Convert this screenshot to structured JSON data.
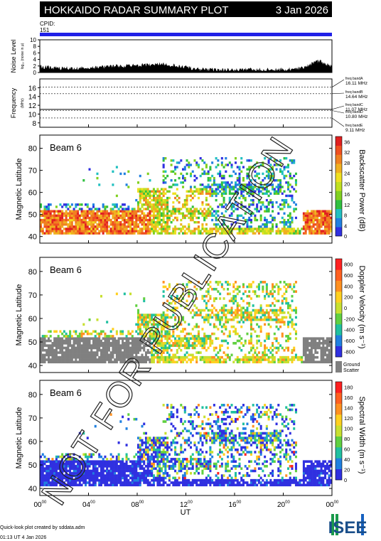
{
  "header": {
    "title": "HOKKAIDO RADAR SUMMARY PLOT",
    "date": "3 Jan 2026",
    "cpid_label": "CPID:",
    "cpid_value": "151"
  },
  "colors": {
    "header_bg": "#000000",
    "cpid_bar": "#2020e8",
    "ground_scatter": "#808080"
  },
  "chart_data": [
    {
      "type": "area",
      "name": "noise",
      "ylabel": "Noise Level",
      "ylabel_sub": "log₁₀ (noise in µ)",
      "ylim": [
        0,
        10
      ],
      "yticks": [
        "10",
        "8",
        "6",
        "4",
        "2",
        "0"
      ],
      "x": [
        0,
        1,
        2,
        3,
        4,
        5,
        6,
        7,
        8,
        9,
        10,
        11,
        12,
        13,
        14,
        15,
        16,
        17,
        18,
        19,
        20,
        21,
        21.5,
        22,
        22.5,
        23,
        23.5,
        24
      ],
      "values": [
        1.8,
        1.5,
        1.3,
        1.4,
        1.6,
        1.7,
        1.9,
        2.0,
        2.2,
        2.4,
        2.6,
        2.2,
        1.6,
        1.0,
        0.9,
        0.8,
        0.9,
        1.0,
        1.0,
        0.9,
        1.0,
        1.1,
        1.4,
        2.0,
        3.0,
        3.5,
        2.5,
        2.0
      ]
    },
    {
      "type": "line",
      "name": "frequency",
      "ylabel": "Frequency",
      "ylabel_sub": "(MHz)",
      "ylim": [
        7,
        18
      ],
      "yticks": [
        "16",
        "14",
        "12",
        "10",
        "8"
      ],
      "bands": [
        {
          "label": "freq bandA",
          "mhz": "16.11 MHz",
          "value": 16.11
        },
        {
          "label": "freq bandB",
          "mhz": "14.64 MHz",
          "value": 14.64
        },
        {
          "label": "freq bandC",
          "mhz": "11.07 MHz",
          "value": 11.07
        },
        {
          "label": "freq bandD",
          "mhz": "10.80 MHz",
          "value": 10.8
        },
        {
          "label": "freq bandE",
          "mhz": "9.11 MHz",
          "value": 9.11
        }
      ]
    },
    {
      "type": "heatmap",
      "name": "power",
      "beam": "Beam  6",
      "ylabel": "Magnetic Latitude",
      "ylim": [
        37,
        86
      ],
      "yticks": [
        "80",
        "70",
        "60",
        "50",
        "40"
      ],
      "colorbar_label": "Backscatter Power (dB)",
      "colorbar_ticks": [
        "36",
        "32",
        "28",
        "24",
        "20",
        "16",
        "12",
        "8",
        "4",
        "0"
      ],
      "colorbar_range": [
        0,
        38
      ]
    },
    {
      "type": "heatmap",
      "name": "velocity",
      "beam": "Beam  6",
      "ylabel": "Magnetic Latitude",
      "ylim": [
        37,
        86
      ],
      "yticks": [
        "80",
        "70",
        "60",
        "50",
        "40"
      ],
      "colorbar_label": "Doppler Velocity (m s⁻¹)",
      "colorbar_ticks": [
        "800",
        "600",
        "400",
        "200",
        "0",
        "-200",
        "-400",
        "-600",
        "-800"
      ],
      "colorbar_range": [
        -900,
        900
      ],
      "ground_scatter_label": [
        "Ground",
        "Scatter"
      ]
    },
    {
      "type": "heatmap",
      "name": "width",
      "beam": "Beam  6",
      "ylabel": "Magnetic Latitude",
      "ylim": [
        37,
        86
      ],
      "yticks": [
        "80",
        "70",
        "60",
        "50",
        "40"
      ],
      "colorbar_label": "Spectral Width (m s⁻¹)",
      "colorbar_ticks": [
        "180",
        "160",
        "140",
        "120",
        "100",
        "80",
        "60",
        "40",
        "20",
        "0"
      ],
      "colorbar_range": [
        0,
        190
      ]
    }
  ],
  "xaxis": {
    "label": "UT",
    "ticks": [
      "00",
      "04",
      "08",
      "12",
      "16",
      "20",
      "00"
    ],
    "tick_suffix": "00",
    "range": [
      0,
      24
    ]
  },
  "footer": {
    "line1": "Quick-look plot created by sddata.adm",
    "line2": "01:13 UT  4 Jan 2026",
    "logo": "ISEE"
  },
  "watermark": "NOT FOR PUBLICATION"
}
